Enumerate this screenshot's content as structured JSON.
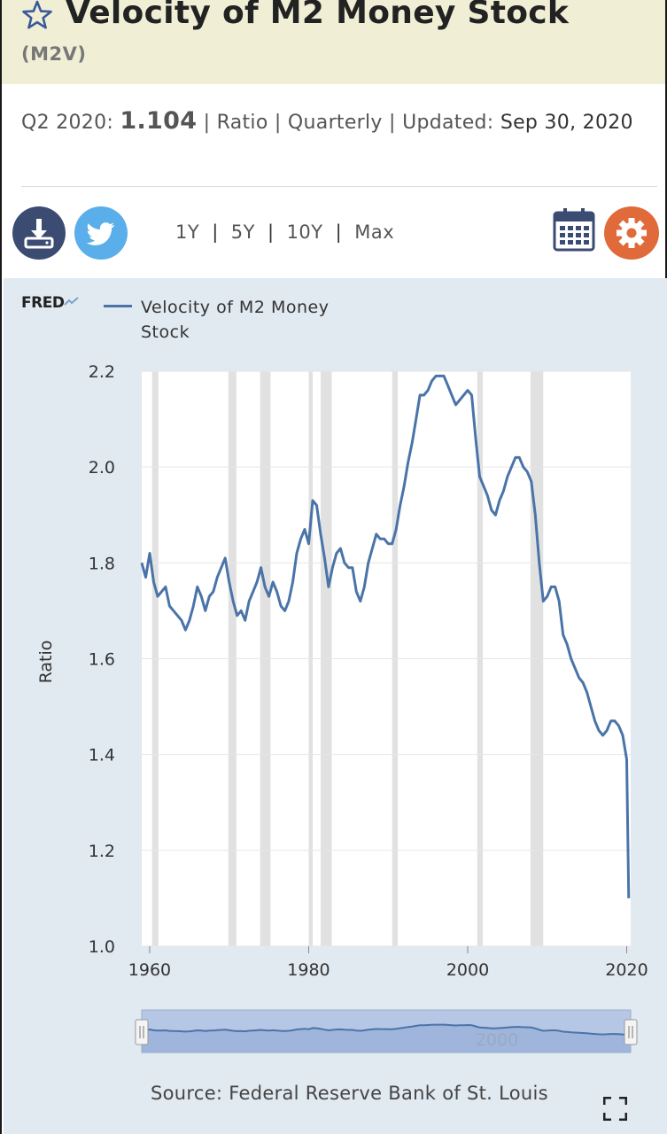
{
  "header": {
    "title": "Velocity of M2 Money Stock",
    "series_id": "(M2V)"
  },
  "info": {
    "period": "Q2 2020:",
    "value": "1.104",
    "units": "Ratio",
    "frequency": "Quarterly",
    "updated_label": "Updated:",
    "updated_date": "Sep 30, 2020"
  },
  "toolbar": {
    "download_icon": "download-icon",
    "twitter_icon": "twitter-icon",
    "ranges": [
      "1Y",
      "5Y",
      "10Y",
      "Max"
    ],
    "calendar_icon": "calendar-icon",
    "settings_icon": "gear-icon"
  },
  "colors": {
    "series": "#4a74a8",
    "panel": "#e1e9f1",
    "recession": "#e1e1e1",
    "title_band": "#f0efd6",
    "download_btn": "#3b4b71",
    "twitter_btn": "#5aaee9",
    "settings_btn": "#e06a3a"
  },
  "chart": {
    "logo": "FRED",
    "legend": "Velocity of M2 Money Stock",
    "source": "Source: Federal Reserve Bank of St. Louis",
    "navigator_label": "2000"
  },
  "chart_data": {
    "type": "line",
    "title": "Velocity of M2 Money Stock",
    "ylabel": "Ratio",
    "xlabel": "",
    "xlim": [
      1959,
      2020.5
    ],
    "ylim": [
      1.0,
      2.2
    ],
    "x_ticks": [
      1960,
      1980,
      2000,
      2020
    ],
    "y_ticks": [
      "1.0",
      "1.2",
      "1.4",
      "1.6",
      "1.8",
      "2.0",
      "2.2"
    ],
    "grid": true,
    "legend_position": "top-left",
    "recessions": [
      [
        1960.3,
        1961.1
      ],
      [
        1969.9,
        1970.9
      ],
      [
        1973.9,
        1975.2
      ],
      [
        1980.0,
        1980.5
      ],
      [
        1981.5,
        1982.9
      ],
      [
        1990.5,
        1991.2
      ],
      [
        2001.2,
        2001.9
      ],
      [
        2007.9,
        2009.5
      ]
    ],
    "series": [
      {
        "name": "Velocity of M2 Money Stock",
        "x": [
          1959.0,
          1959.5,
          1960.0,
          1960.5,
          1961.0,
          1961.5,
          1962.0,
          1962.5,
          1963.0,
          1963.5,
          1964.0,
          1964.5,
          1965.0,
          1965.5,
          1966.0,
          1966.5,
          1967.0,
          1967.5,
          1968.0,
          1968.5,
          1969.0,
          1969.5,
          1970.0,
          1970.5,
          1971.0,
          1971.5,
          1972.0,
          1972.5,
          1973.0,
          1973.5,
          1974.0,
          1974.5,
          1975.0,
          1975.5,
          1976.0,
          1976.5,
          1977.0,
          1977.5,
          1978.0,
          1978.5,
          1979.0,
          1979.5,
          1980.0,
          1980.5,
          1981.0,
          1981.5,
          1982.0,
          1982.5,
          1983.0,
          1983.5,
          1984.0,
          1984.5,
          1985.0,
          1985.5,
          1986.0,
          1986.5,
          1987.0,
          1987.5,
          1988.0,
          1988.5,
          1989.0,
          1989.5,
          1990.0,
          1990.5,
          1991.0,
          1991.5,
          1992.0,
          1992.5,
          1993.0,
          1993.5,
          1994.0,
          1994.5,
          1995.0,
          1995.5,
          1996.0,
          1996.5,
          1997.0,
          1997.5,
          1998.0,
          1998.5,
          1999.0,
          1999.5,
          2000.0,
          2000.5,
          2001.0,
          2001.5,
          2002.0,
          2002.5,
          2003.0,
          2003.5,
          2004.0,
          2004.5,
          2005.0,
          2005.5,
          2006.0,
          2006.5,
          2007.0,
          2007.5,
          2008.0,
          2008.5,
          2009.0,
          2009.5,
          2010.0,
          2010.5,
          2011.0,
          2011.5,
          2012.0,
          2012.5,
          2013.0,
          2013.5,
          2014.0,
          2014.5,
          2015.0,
          2015.5,
          2016.0,
          2016.5,
          2017.0,
          2017.5,
          2018.0,
          2018.5,
          2019.0,
          2019.5,
          2020.0,
          2020.25
        ],
        "values": [
          1.8,
          1.77,
          1.82,
          1.76,
          1.73,
          1.74,
          1.75,
          1.71,
          1.7,
          1.69,
          1.68,
          1.66,
          1.68,
          1.71,
          1.75,
          1.73,
          1.7,
          1.73,
          1.74,
          1.77,
          1.79,
          1.81,
          1.76,
          1.72,
          1.69,
          1.7,
          1.68,
          1.72,
          1.74,
          1.76,
          1.79,
          1.75,
          1.73,
          1.76,
          1.74,
          1.71,
          1.7,
          1.72,
          1.76,
          1.82,
          1.85,
          1.87,
          1.84,
          1.93,
          1.92,
          1.86,
          1.81,
          1.75,
          1.79,
          1.82,
          1.83,
          1.8,
          1.79,
          1.79,
          1.74,
          1.72,
          1.75,
          1.8,
          1.83,
          1.86,
          1.85,
          1.85,
          1.84,
          1.84,
          1.87,
          1.92,
          1.96,
          2.01,
          2.05,
          2.1,
          2.15,
          2.15,
          2.16,
          2.18,
          2.19,
          2.19,
          2.19,
          2.17,
          2.15,
          2.13,
          2.14,
          2.15,
          2.16,
          2.15,
          2.06,
          1.98,
          1.96,
          1.94,
          1.91,
          1.9,
          1.93,
          1.95,
          1.98,
          2.0,
          2.02,
          2.02,
          2.0,
          1.99,
          1.97,
          1.9,
          1.8,
          1.72,
          1.73,
          1.75,
          1.75,
          1.72,
          1.65,
          1.63,
          1.6,
          1.58,
          1.56,
          1.55,
          1.53,
          1.5,
          1.47,
          1.45,
          1.44,
          1.45,
          1.47,
          1.47,
          1.46,
          1.44,
          1.39,
          1.1
        ]
      }
    ]
  }
}
